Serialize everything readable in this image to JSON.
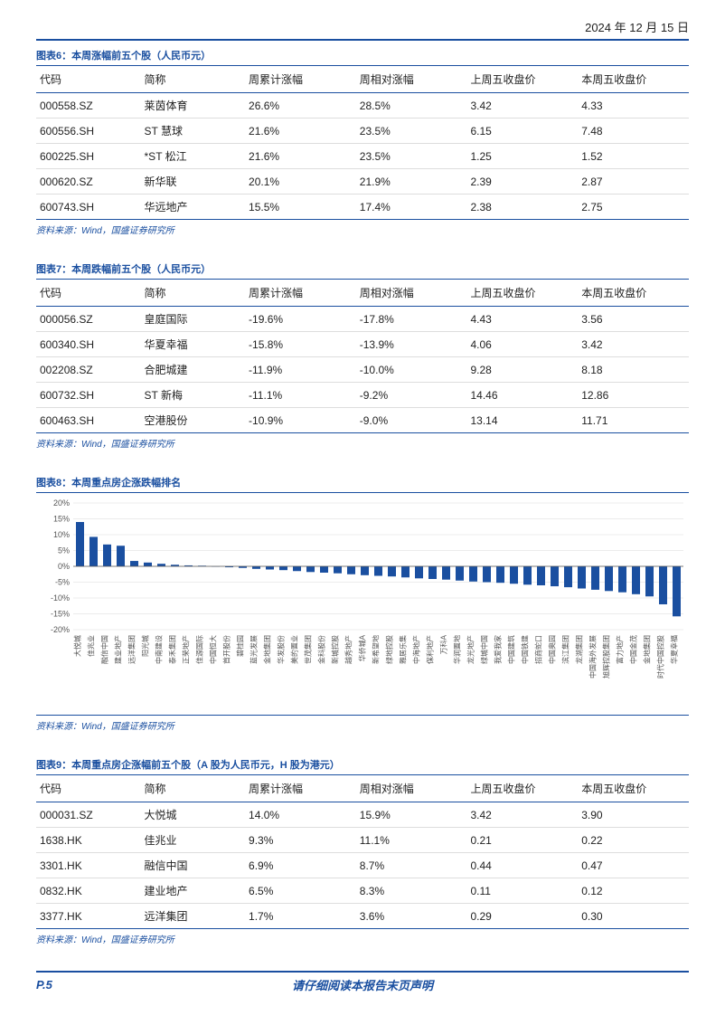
{
  "header_date": "2024 年 12 月 15 日",
  "source_label": "资料来源：Wind，国盛证券研究所",
  "columns": [
    "代码",
    "简称",
    "周累计涨幅",
    "周相对涨幅",
    "上周五收盘价",
    "本周五收盘价"
  ],
  "table6": {
    "title": "图表6：本周涨幅前五个股（人民币元）",
    "rows": [
      [
        "000558.SZ",
        "莱茵体育",
        "26.6%",
        "28.5%",
        "3.42",
        "4.33"
      ],
      [
        "600556.SH",
        "ST 慧球",
        "21.6%",
        "23.5%",
        "6.15",
        "7.48"
      ],
      [
        "600225.SH",
        "*ST 松江",
        "21.6%",
        "23.5%",
        "1.25",
        "1.52"
      ],
      [
        "000620.SZ",
        "新华联",
        "20.1%",
        "21.9%",
        "2.39",
        "2.87"
      ],
      [
        "600743.SH",
        "华远地产",
        "15.5%",
        "17.4%",
        "2.38",
        "2.75"
      ]
    ]
  },
  "table7": {
    "title": "图表7：本周跌幅前五个股（人民币元）",
    "rows": [
      [
        "000056.SZ",
        "皇庭国际",
        "-19.6%",
        "-17.8%",
        "4.43",
        "3.56"
      ],
      [
        "600340.SH",
        "华夏幸福",
        "-15.8%",
        "-13.9%",
        "4.06",
        "3.42"
      ],
      [
        "002208.SZ",
        "合肥城建",
        "-11.9%",
        "-10.0%",
        "9.28",
        "8.18"
      ],
      [
        "600732.SH",
        "ST 新梅",
        "-11.1%",
        "-9.2%",
        "14.46",
        "12.86"
      ],
      [
        "600463.SH",
        "空港股份",
        "-10.9%",
        "-9.0%",
        "13.14",
        "11.71"
      ]
    ]
  },
  "chart8": {
    "title": "图表8：本周重点房企涨跌幅排名",
    "type": "bar",
    "bar_color": "#1a4fa0",
    "grid_color": "#d9d9d9",
    "background_color": "#ffffff",
    "axis_text_color": "#555555",
    "label_fontsize": 8,
    "axis_fontsize": 9,
    "ylim": [
      -20,
      20
    ],
    "ytick_step": 5,
    "yticks": [
      "-20%",
      "-15%",
      "-10%",
      "-5%",
      "0%",
      "5%",
      "10%",
      "15%",
      "20%"
    ],
    "labels": [
      "大悦城",
      "佳兆业",
      "融信中国",
      "建业地产",
      "远洋集团",
      "阳光城",
      "中南建设",
      "泰禾集团",
      "正荣地产",
      "佳源国际",
      "中国恒大",
      "首开股份",
      "碧桂园",
      "蓝光发展",
      "金地集团",
      "华发股份",
      "美的置业",
      "世茂集团",
      "金科股份",
      "新城控股",
      "越秀地产",
      "华侨城A",
      "新希望地",
      "绿地控股",
      "雅居乐集",
      "中海地产",
      "保利地产",
      "万科A",
      "华润置地",
      "龙光地产",
      "绿城中国",
      "我爱我家",
      "中国建筑",
      "中国铁建",
      "招商蛇口",
      "中国奥园",
      "滨江集团",
      "龙湖集团",
      "中国海外发展",
      "旭辉控股集团",
      "富力地产",
      "中国金茂",
      "金地集团",
      "时代中国控股",
      "华夏幸福"
    ],
    "values": [
      14.0,
      9.3,
      6.9,
      6.5,
      1.7,
      1.2,
      0.8,
      0.5,
      0.3,
      0.2,
      -0.1,
      -0.3,
      -0.5,
      -0.8,
      -1.0,
      -1.2,
      -1.5,
      -1.8,
      -2.0,
      -2.2,
      -2.5,
      -2.8,
      -3.0,
      -3.2,
      -3.5,
      -3.8,
      -4.0,
      -4.2,
      -4.5,
      -4.8,
      -5.0,
      -5.2,
      -5.5,
      -5.8,
      -6.0,
      -6.3,
      -6.6,
      -7.0,
      -7.4,
      -7.8,
      -8.2,
      -8.8,
      -9.5,
      -12.0,
      -15.8
    ]
  },
  "table9": {
    "title": "图表9：本周重点房企涨幅前五个股（A 股为人民币元，H 股为港元）",
    "rows": [
      [
        "000031.SZ",
        "大悦城",
        "14.0%",
        "15.9%",
        "3.42",
        "3.90"
      ],
      [
        "1638.HK",
        "佳兆业",
        "9.3%",
        "11.1%",
        "0.21",
        "0.22"
      ],
      [
        "3301.HK",
        "融信中国",
        "6.9%",
        "8.7%",
        "0.44",
        "0.47"
      ],
      [
        "0832.HK",
        "建业地产",
        "6.5%",
        "8.3%",
        "0.11",
        "0.12"
      ],
      [
        "3377.HK",
        "远洋集团",
        "1.7%",
        "3.6%",
        "0.29",
        "0.30"
      ]
    ]
  },
  "footer": {
    "page": "P.5",
    "disclaimer": "请仔细阅读本报告末页声明"
  }
}
